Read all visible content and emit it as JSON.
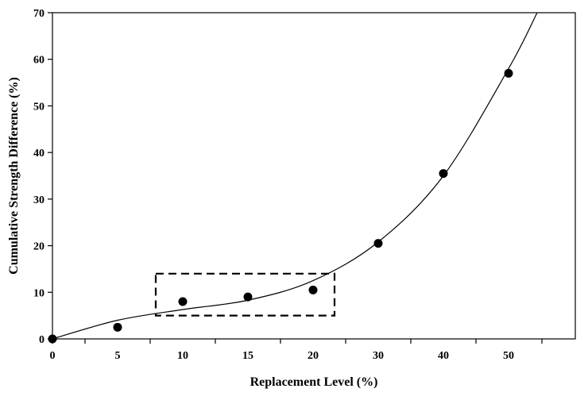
{
  "chart_data": {
    "type": "scatter",
    "title": "",
    "xlabel": "Replacement Level (%)",
    "ylabel": "Cumulative Strength Difference (%)",
    "x_tick_labels": [
      "0",
      "5",
      "10",
      "15",
      "20",
      "30",
      "40",
      "50"
    ],
    "y_ticks": [
      0,
      10,
      20,
      30,
      40,
      50,
      60,
      70
    ],
    "ylim": [
      0,
      70
    ],
    "grid": false,
    "series": [
      {
        "points": [
          {
            "x": "0",
            "y": 0
          },
          {
            "x": "5",
            "y": 2.5
          },
          {
            "x": "10",
            "y": 8.0
          },
          {
            "x": "15",
            "y": 9.0
          },
          {
            "x": "20",
            "y": 10.5
          },
          {
            "x": "30",
            "y": 20.5
          },
          {
            "x": "40",
            "y": 35.5
          },
          {
            "x": "50",
            "y": 57.0
          }
        ],
        "marker_color": "#000000"
      }
    ],
    "fit_curve": [
      {
        "x": "0",
        "y": 0
      },
      {
        "x": "5",
        "y": 4.0
      },
      {
        "x": "10",
        "y": 6.3
      },
      {
        "x": "15",
        "y": 8.3
      },
      {
        "x": "20",
        "y": 12.5
      },
      {
        "x": "30",
        "y": 20.8
      },
      {
        "x": "40",
        "y": 35.0
      },
      {
        "x": "50",
        "y": 58.0
      }
    ],
    "highlight_box": {
      "x_from": "10",
      "x_to": "20",
      "y_from": 5,
      "y_to": 14,
      "style": "dashed"
    },
    "colors": {
      "marker": "#000000",
      "line": "#000000",
      "box": "#000000"
    }
  }
}
